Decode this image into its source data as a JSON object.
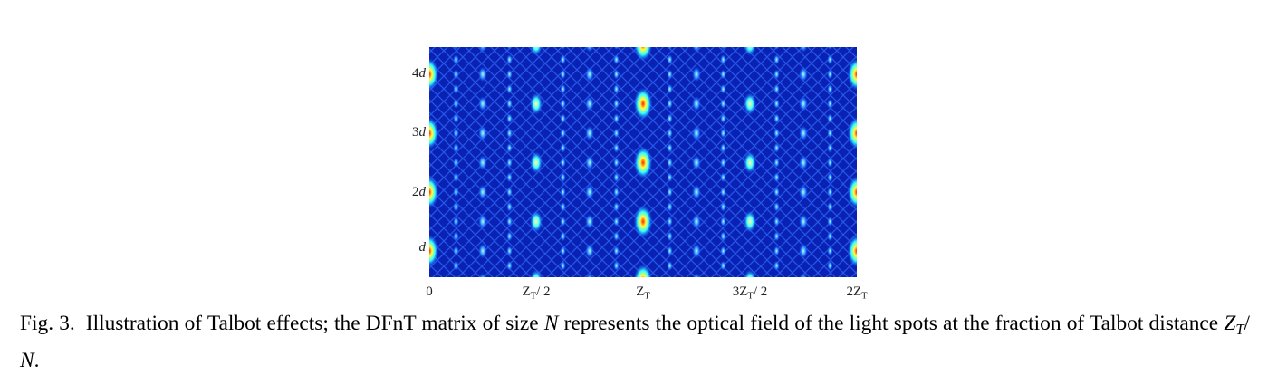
{
  "figure": {
    "y_tick_labels": [
      [
        {
          "text": "4"
        },
        {
          "text": "d",
          "style": "italic"
        }
      ],
      [
        {
          "text": "3"
        },
        {
          "text": "d",
          "style": "italic"
        }
      ],
      [
        {
          "text": "2"
        },
        {
          "text": "d",
          "style": "italic"
        }
      ],
      [
        {
          "text": "d",
          "style": "italic"
        }
      ]
    ],
    "x_tick_labels": [
      [
        {
          "text": "0"
        }
      ],
      [
        {
          "text": "Z"
        },
        {
          "text": "T",
          "style": "sub"
        },
        {
          "text": "/ 2"
        }
      ],
      [
        {
          "text": "Z"
        },
        {
          "text": "T",
          "style": "sub"
        }
      ],
      [
        {
          "text": "3Z"
        },
        {
          "text": "T",
          "style": "sub"
        },
        {
          "text": "/ 2"
        }
      ],
      [
        {
          "text": "2Z"
        },
        {
          "text": "T",
          "style": "sub"
        }
      ]
    ]
  },
  "caption": {
    "label": "Fig. 3.",
    "segments": [
      {
        "text": "Illustration of Talbot effects; the DFnT matrix of size "
      },
      {
        "text": "N",
        "style": "italic"
      },
      {
        "text": " represents the optical field of the light spots at the fraction of Talbot distance "
      },
      {
        "text": "Z",
        "style": "italic"
      },
      {
        "text": "T",
        "style": "italic-sub"
      },
      {
        "text": "/ "
      },
      {
        "text": "N",
        "style": "italic"
      },
      {
        "text": "."
      }
    ]
  }
}
